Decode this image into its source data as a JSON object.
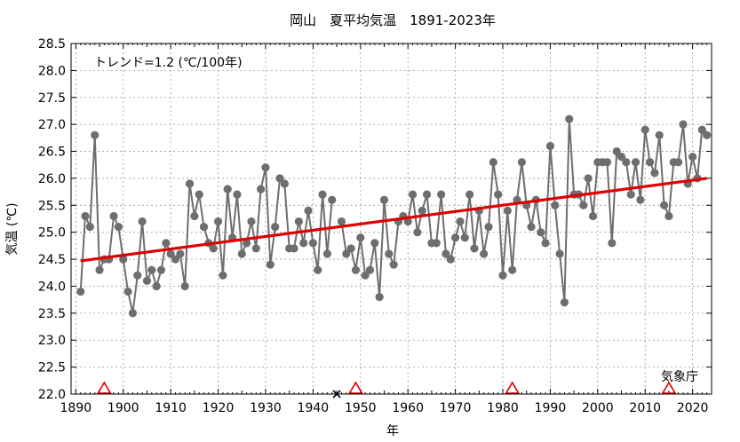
{
  "chart_data": {
    "type": "line",
    "title": "岡山　夏平均気温　1891-2023年",
    "xlabel": "年",
    "ylabel": "気温 (℃)",
    "trend_label": "トレンド=1.2 (℃/100年)",
    "credit": "気象庁",
    "xlim": [
      1889,
      2024
    ],
    "ylim": [
      22.0,
      28.5
    ],
    "x_ticks": [
      1890,
      1900,
      1910,
      1920,
      1930,
      1940,
      1950,
      1960,
      1970,
      1980,
      1990,
      2000,
      2010,
      2020
    ],
    "y_ticks": [
      22.0,
      22.5,
      23.0,
      23.5,
      24.0,
      24.5,
      25.0,
      25.5,
      26.0,
      26.5,
      27.0,
      27.5,
      28.0,
      28.5
    ],
    "grid": "dashed",
    "series": [
      {
        "style": "line-with-markers",
        "color": "#6e6e6e",
        "segments": [
          [
            [
              1891,
              23.9
            ],
            [
              1892,
              25.3
            ],
            [
              1893,
              25.1
            ],
            [
              1894,
              26.8
            ],
            [
              1895,
              24.3
            ],
            [
              1896,
              24.5
            ],
            [
              1897,
              24.5
            ],
            [
              1898,
              25.3
            ],
            [
              1899,
              25.1
            ],
            [
              1900,
              24.5
            ],
            [
              1901,
              23.9
            ],
            [
              1902,
              23.5
            ],
            [
              1903,
              24.2
            ],
            [
              1904,
              25.2
            ],
            [
              1905,
              24.1
            ],
            [
              1906,
              24.3
            ],
            [
              1907,
              24.0
            ],
            [
              1908,
              24.3
            ],
            [
              1909,
              24.8
            ],
            [
              1910,
              24.6
            ],
            [
              1911,
              24.5
            ],
            [
              1912,
              24.6
            ],
            [
              1913,
              24.0
            ],
            [
              1914,
              25.9
            ],
            [
              1915,
              25.3
            ],
            [
              1916,
              25.7
            ],
            [
              1917,
              25.1
            ],
            [
              1918,
              24.8
            ],
            [
              1919,
              24.7
            ],
            [
              1920,
              25.2
            ],
            [
              1921,
              24.2
            ],
            [
              1922,
              25.8
            ],
            [
              1923,
              24.9
            ],
            [
              1924,
              25.7
            ],
            [
              1925,
              24.6
            ],
            [
              1926,
              24.8
            ],
            [
              1927,
              25.2
            ],
            [
              1928,
              24.7
            ],
            [
              1929,
              25.8
            ],
            [
              1930,
              26.2
            ],
            [
              1931,
              24.4
            ],
            [
              1932,
              25.1
            ],
            [
              1933,
              26.0
            ],
            [
              1934,
              25.9
            ],
            [
              1935,
              24.7
            ],
            [
              1936,
              24.7
            ],
            [
              1937,
              25.2
            ],
            [
              1938,
              24.8
            ],
            [
              1939,
              25.4
            ],
            [
              1940,
              24.8
            ],
            [
              1941,
              24.3
            ],
            [
              1942,
              25.7
            ],
            [
              1943,
              24.6
            ],
            [
              1944,
              25.6
            ]
          ],
          [
            [
              1946,
              25.2
            ],
            [
              1947,
              24.6
            ],
            [
              1948,
              24.7
            ],
            [
              1949,
              24.3
            ],
            [
              1950,
              24.9
            ],
            [
              1951,
              24.2
            ],
            [
              1952,
              24.3
            ],
            [
              1953,
              24.8
            ],
            [
              1954,
              23.8
            ],
            [
              1955,
              25.6
            ],
            [
              1956,
              24.6
            ],
            [
              1957,
              24.4
            ],
            [
              1958,
              25.2
            ],
            [
              1959,
              25.3
            ],
            [
              1960,
              25.2
            ],
            [
              1961,
              25.7
            ],
            [
              1962,
              25.0
            ],
            [
              1963,
              25.4
            ],
            [
              1964,
              25.7
            ],
            [
              1965,
              24.8
            ],
            [
              1966,
              24.8
            ],
            [
              1967,
              25.7
            ],
            [
              1968,
              24.6
            ],
            [
              1969,
              24.5
            ],
            [
              1970,
              24.9
            ],
            [
              1971,
              25.2
            ],
            [
              1972,
              24.9
            ],
            [
              1973,
              25.7
            ],
            [
              1974,
              24.7
            ],
            [
              1975,
              25.4
            ],
            [
              1976,
              24.6
            ],
            [
              1977,
              25.1
            ],
            [
              1978,
              26.3
            ],
            [
              1979,
              25.7
            ],
            [
              1980,
              24.2
            ],
            [
              1981,
              25.4
            ],
            [
              1982,
              24.3
            ],
            [
              1983,
              25.6
            ],
            [
              1984,
              26.3
            ],
            [
              1985,
              25.5
            ],
            [
              1986,
              25.1
            ],
            [
              1987,
              25.6
            ],
            [
              1988,
              25.0
            ],
            [
              1989,
              24.8
            ],
            [
              1990,
              26.6
            ],
            [
              1991,
              25.5
            ],
            [
              1992,
              24.6
            ],
            [
              1993,
              23.7
            ],
            [
              1994,
              27.1
            ],
            [
              1995,
              25.7
            ],
            [
              1996,
              25.7
            ],
            [
              1997,
              25.5
            ],
            [
              1998,
              26.0
            ],
            [
              1999,
              25.3
            ],
            [
              2000,
              26.3
            ],
            [
              2001,
              26.3
            ],
            [
              2002,
              26.3
            ],
            [
              2003,
              24.8
            ],
            [
              2004,
              26.5
            ],
            [
              2005,
              26.4
            ],
            [
              2006,
              26.3
            ],
            [
              2007,
              25.7
            ],
            [
              2008,
              26.3
            ],
            [
              2009,
              25.6
            ],
            [
              2010,
              26.9
            ],
            [
              2011,
              26.3
            ],
            [
              2012,
              26.1
            ],
            [
              2013,
              26.8
            ],
            [
              2014,
              25.5
            ],
            [
              2015,
              25.3
            ],
            [
              2016,
              26.3
            ],
            [
              2017,
              26.3
            ],
            [
              2018,
              27.0
            ],
            [
              2019,
              25.9
            ],
            [
              2020,
              26.4
            ],
            [
              2021,
              26.0
            ],
            [
              2022,
              26.9
            ],
            [
              2023,
              26.8
            ]
          ]
        ]
      },
      {
        "style": "trend-line",
        "color": "#e00000",
        "x": [
          1891,
          2023
        ],
        "y": [
          24.47,
          26.0
        ]
      }
    ],
    "markers": {
      "station_relocation_triangles": [
        1896,
        1949,
        1982,
        2015
      ],
      "missing_x": [
        1945
      ],
      "color_triangle": "#e00000",
      "color_x": "#000000"
    }
  }
}
